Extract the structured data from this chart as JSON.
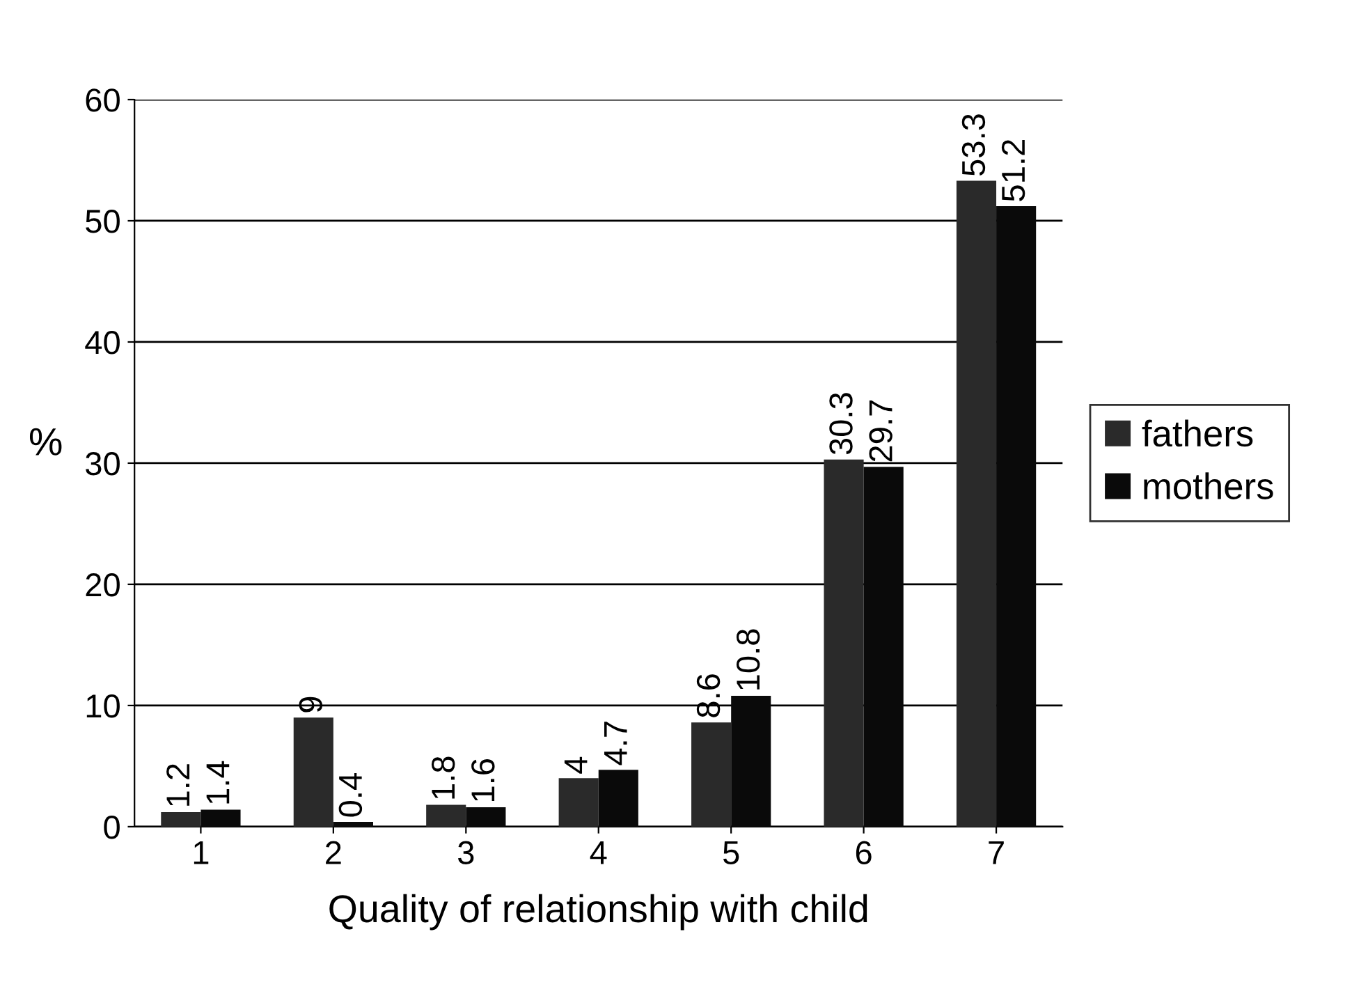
{
  "chart_data": {
    "type": "bar",
    "xlabel": "Quality of relationship with child",
    "ylabel": "%",
    "categories": [
      "1",
      "2",
      "3",
      "4",
      "5",
      "6",
      "7"
    ],
    "series": [
      {
        "name": "fathers",
        "color": "#2a2a2a",
        "values": [
          1.2,
          9,
          1.8,
          4,
          8.6,
          30.3,
          53.3
        ]
      },
      {
        "name": "mothers",
        "color": "#0a0a0a",
        "values": [
          1.4,
          0.4,
          1.6,
          4.7,
          10.8,
          29.7,
          51.2
        ]
      }
    ],
    "ylim": [
      0,
      60
    ],
    "yticks": [
      0,
      10,
      20,
      30,
      40,
      50,
      60
    ],
    "grid": "y",
    "legend": "right",
    "data_labels": true
  }
}
